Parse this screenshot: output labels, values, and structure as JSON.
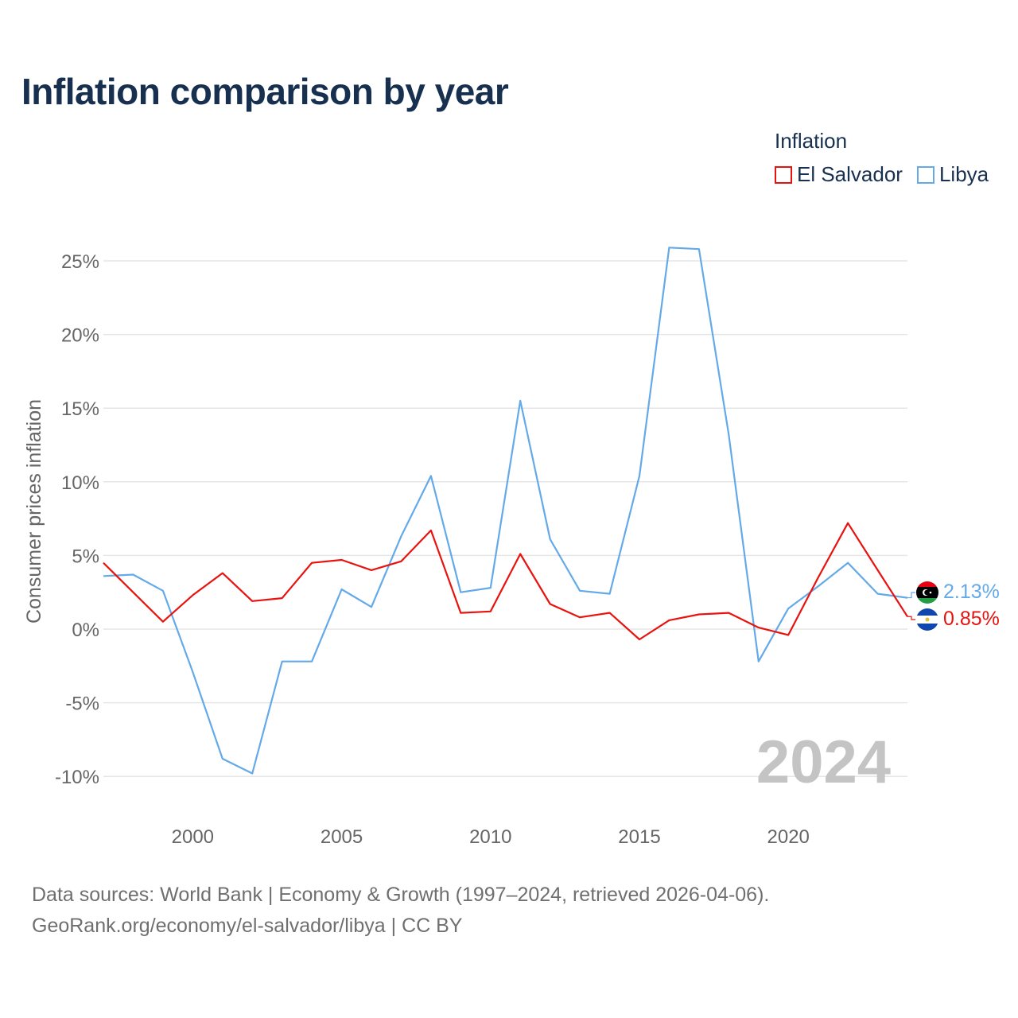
{
  "header": {
    "title": "Inflation comparison by year"
  },
  "legend": {
    "title": "Inflation",
    "items": [
      {
        "label": "El Salvador",
        "color": "#e8130f"
      },
      {
        "label": "Libya",
        "color": "#64a9e8"
      }
    ]
  },
  "footer": {
    "line1": "Data sources: World Bank | Economy & Growth (1997–2024, retrieved 2026-04-06).",
    "line2": "GeoRank.org/economy/el-salvador/libya | CC BY"
  },
  "chart_data": {
    "type": "line",
    "ylabel": "Consumer prices inflation",
    "xlabel": "",
    "xlim": [
      1997,
      2024
    ],
    "ylim": [
      -12,
      27
    ],
    "y_ticks": [
      {
        "value": -10,
        "label": "-10%"
      },
      {
        "value": -5,
        "label": "-5%"
      },
      {
        "value": 0,
        "label": "0%"
      },
      {
        "value": 5,
        "label": "5%"
      },
      {
        "value": 10,
        "label": "10%"
      },
      {
        "value": 15,
        "label": "15%"
      },
      {
        "value": 20,
        "label": "20%"
      },
      {
        "value": 25,
        "label": "25%"
      }
    ],
    "x_ticks": [
      {
        "value": 2000,
        "label": "2000"
      },
      {
        "value": 2005,
        "label": "2005"
      },
      {
        "value": 2010,
        "label": "2010"
      },
      {
        "value": 2015,
        "label": "2015"
      },
      {
        "value": 2020,
        "label": "2020"
      }
    ],
    "x": [
      1997,
      1998,
      1999,
      2000,
      2001,
      2002,
      2003,
      2004,
      2005,
      2006,
      2007,
      2008,
      2009,
      2010,
      2011,
      2012,
      2013,
      2014,
      2015,
      2016,
      2017,
      2018,
      2019,
      2020,
      2021,
      2022,
      2023,
      2024
    ],
    "series": [
      {
        "name": "El Salvador",
        "color": "#e8130f",
        "end_label": "0.85%",
        "values": [
          4.5,
          2.5,
          0.5,
          2.3,
          3.8,
          1.9,
          2.1,
          4.5,
          4.7,
          4.0,
          4.6,
          6.7,
          1.1,
          1.2,
          5.1,
          1.7,
          0.8,
          1.1,
          -0.7,
          0.6,
          1.0,
          1.1,
          0.1,
          -0.4,
          3.5,
          7.2,
          4.0,
          0.85
        ]
      },
      {
        "name": "Libya",
        "color": "#64a9e8",
        "end_label": "2.13%",
        "values": [
          3.6,
          3.7,
          2.6,
          -2.9,
          -8.8,
          -9.8,
          -2.2,
          -2.2,
          2.7,
          1.5,
          6.3,
          10.4,
          2.5,
          2.8,
          15.5,
          6.1,
          2.6,
          2.4,
          10.4,
          25.9,
          25.8,
          13.2,
          -2.2,
          1.4,
          2.9,
          4.5,
          2.4,
          2.13
        ]
      }
    ],
    "year_watermark": "2024"
  }
}
